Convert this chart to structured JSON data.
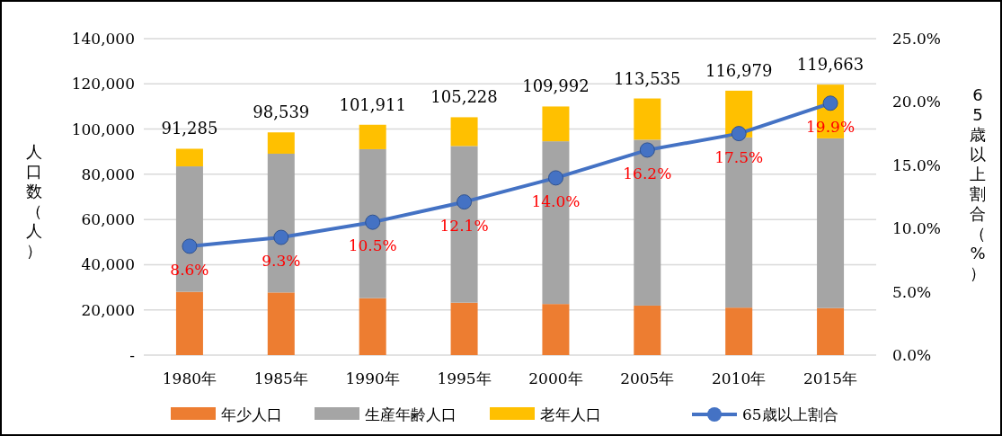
{
  "chart_data": {
    "type": "bar",
    "stacked": true,
    "categories": [
      "1980年",
      "1985年",
      "1990年",
      "1995年",
      "2000年",
      "2005年",
      "2010年",
      "2015年"
    ],
    "series": [
      {
        "name": "年少人口",
        "color": "#ed7d31",
        "values": [
          28000,
          27700,
          25200,
          23200,
          22600,
          21900,
          21000,
          20800
        ]
      },
      {
        "name": "生産年齢人口",
        "color": "#a5a5a5",
        "values": [
          55500,
          61400,
          65900,
          69300,
          72000,
          73400,
          75300,
          75100
        ]
      },
      {
        "name": "老年人口",
        "color": "#ffc000",
        "values": [
          7785,
          9439,
          10811,
          12728,
          15392,
          18235,
          20679,
          23763
        ]
      },
      {
        "name": "65歳以上割合",
        "type": "line",
        "axis": "y2",
        "color": "#4472c4",
        "marker": "circle",
        "values": [
          8.6,
          9.3,
          10.5,
          12.1,
          14.0,
          16.2,
          17.5,
          19.9
        ],
        "value_labels": [
          "8.6%",
          "9.3%",
          "10.5%",
          "12.1%",
          "14.0%",
          "16.2%",
          "17.5%",
          "19.9%"
        ]
      }
    ],
    "totals": [
      "91,285",
      "98,539",
      "101,911",
      "105,228",
      "109,992",
      "113,535",
      "116,979",
      "119,663"
    ],
    "ylabel": "人口数（人）",
    "y2label": "65歳以上割合（%）",
    "ylim": [
      0,
      140000
    ],
    "yticks": [
      {
        "value": 0,
        "label": "-"
      },
      {
        "value": 20000,
        "label": "20,000"
      },
      {
        "value": 40000,
        "label": "40,000"
      },
      {
        "value": 60000,
        "label": "60,000"
      },
      {
        "value": 80000,
        "label": "80,000"
      },
      {
        "value": 100000,
        "label": "100,000"
      },
      {
        "value": 120000,
        "label": "120,000"
      },
      {
        "value": 140000,
        "label": "140,000"
      }
    ],
    "y2lim": [
      0,
      25
    ],
    "y2ticks": [
      {
        "value": 0,
        "label": "0.0%"
      },
      {
        "value": 5,
        "label": "5.0%"
      },
      {
        "value": 10,
        "label": "10.0%"
      },
      {
        "value": 15,
        "label": "15.0%"
      },
      {
        "value": 20,
        "label": "20.0%"
      },
      {
        "value": 25,
        "label": "25.0%"
      }
    ],
    "grid": "y",
    "legend": "bottom"
  }
}
